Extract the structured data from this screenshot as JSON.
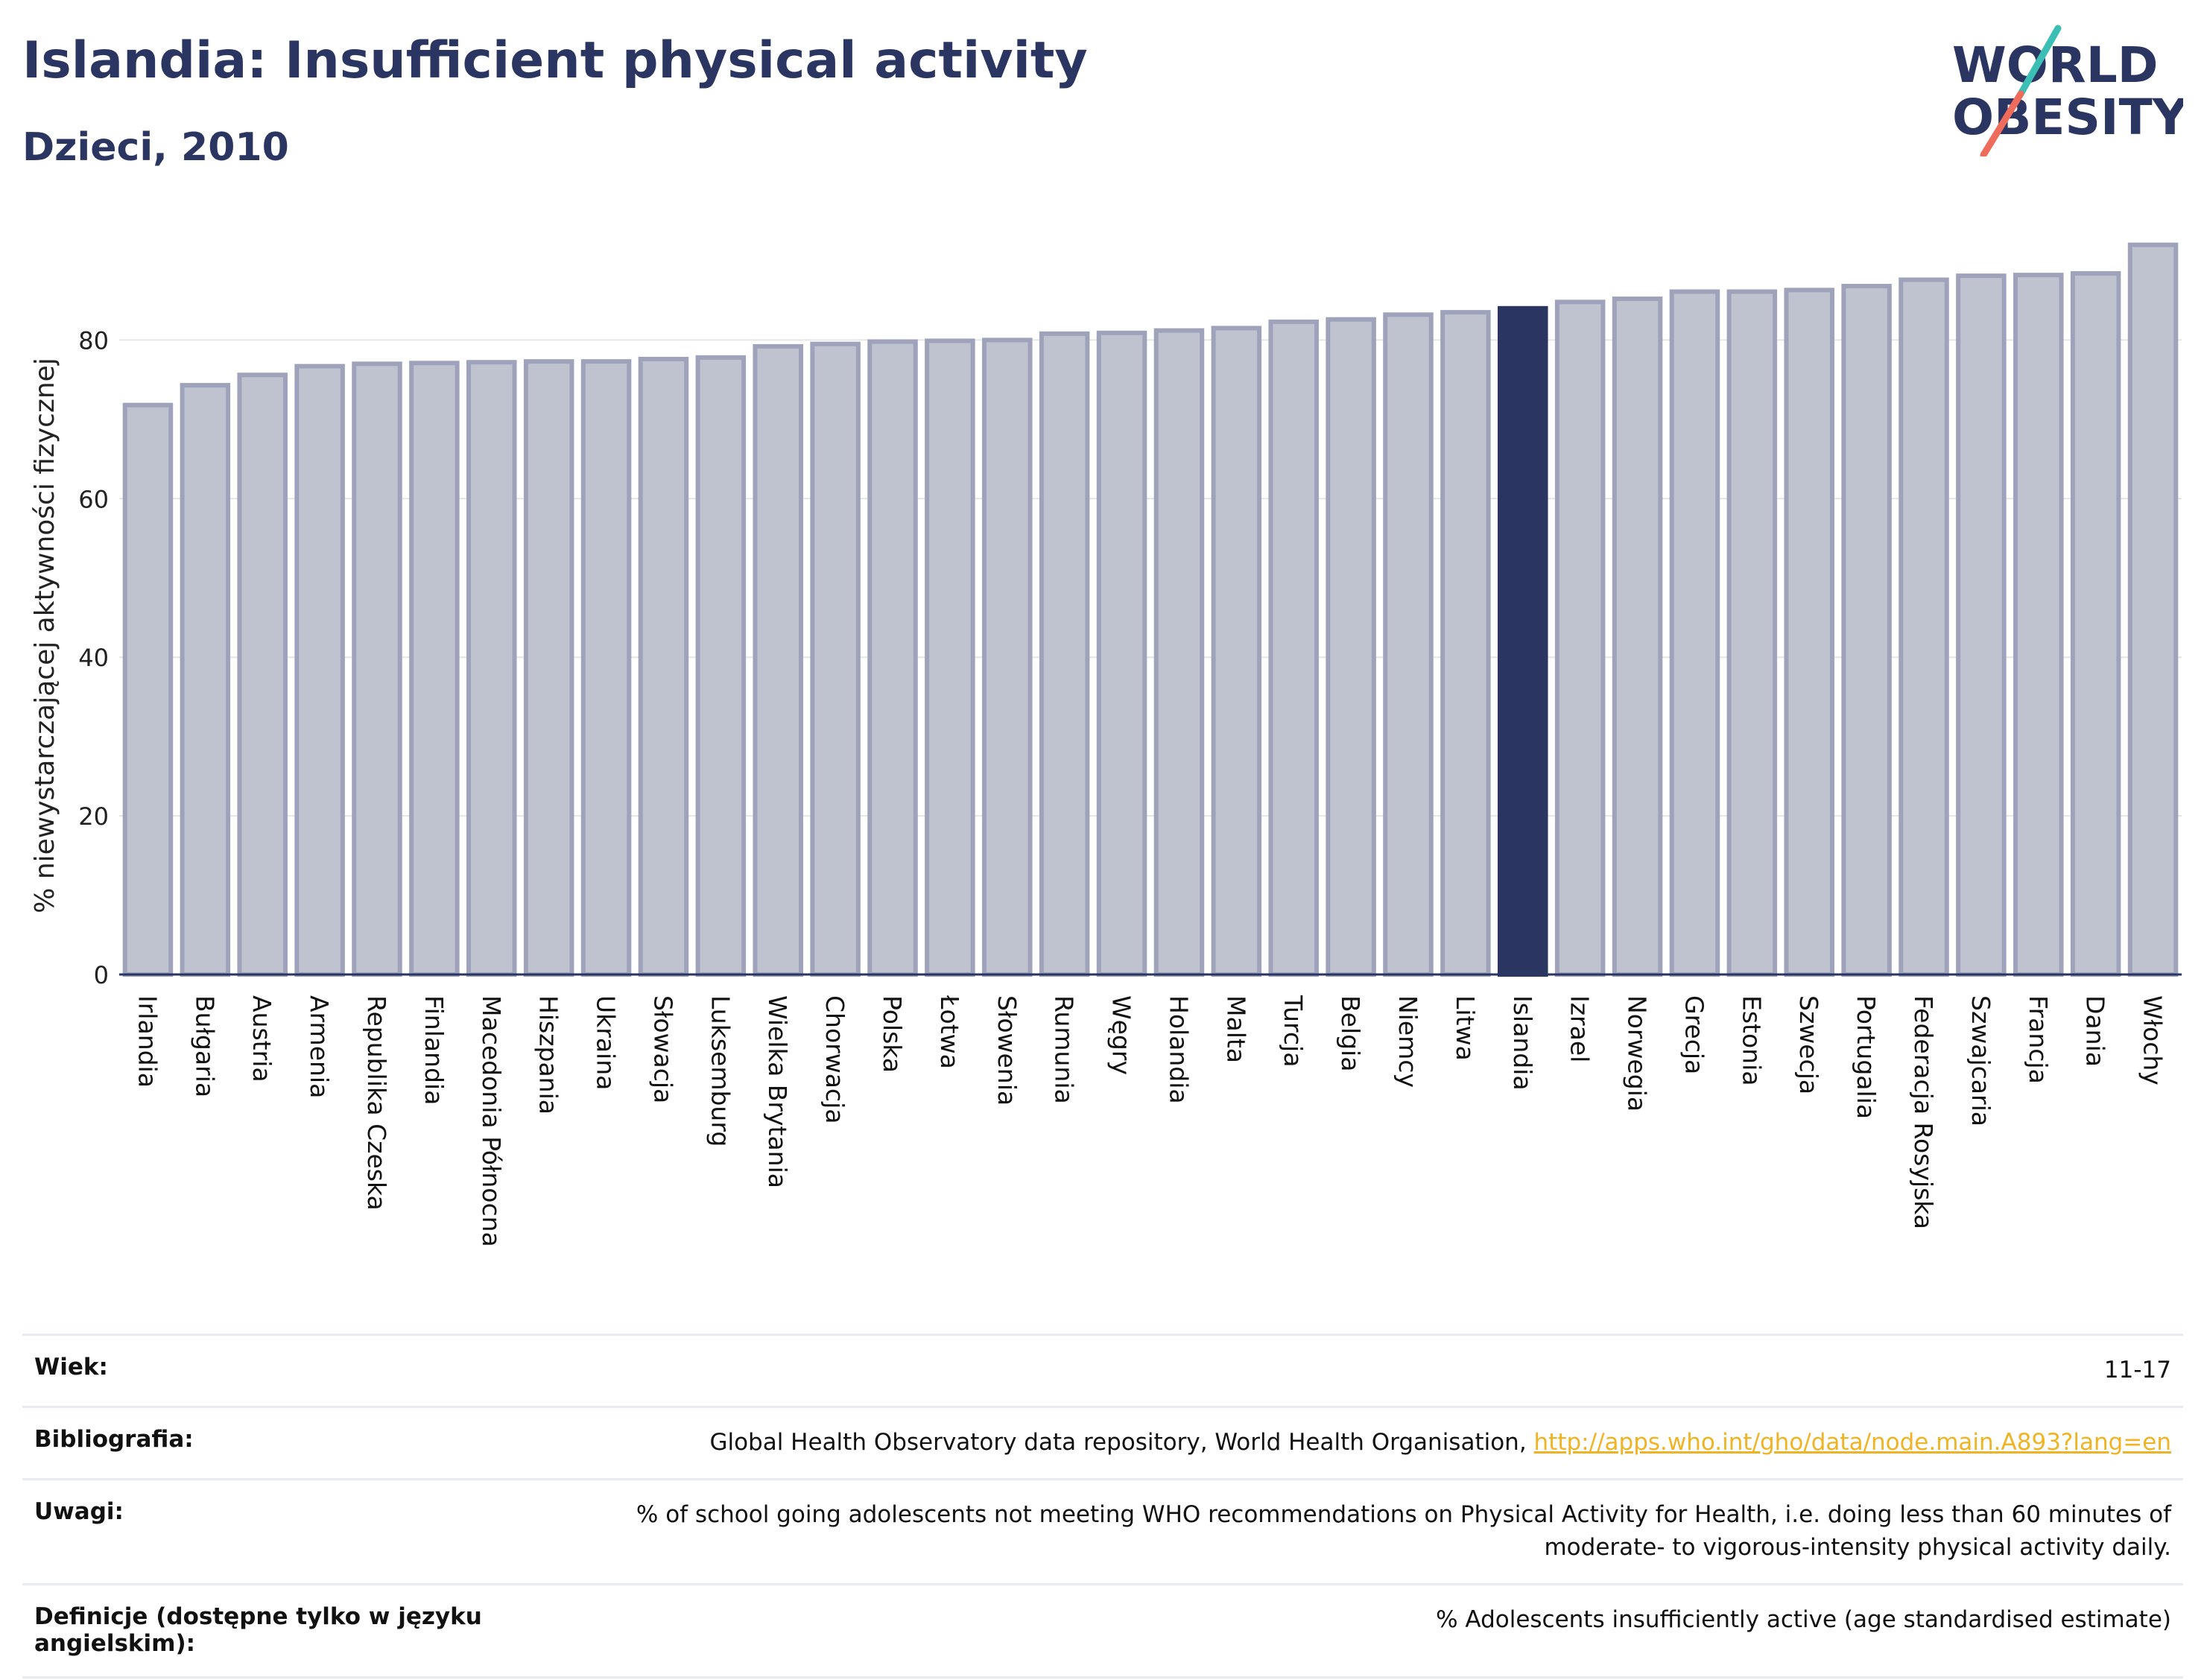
{
  "header": {
    "title": "Islandia: Insufficient physical activity",
    "subtitle": "Dzieci, 2010",
    "logo_line1": "WORLD",
    "logo_line2": "OBESITY"
  },
  "colors": {
    "bar": "#bfc2cf",
    "bar_border": "#9ea3bb",
    "highlight": "#2a3561",
    "grid": "#e6e6e6",
    "logo_text": "#2a3561",
    "logo_teal": "#3bbfb5",
    "logo_coral": "#ef6b5b"
  },
  "chart_data": {
    "type": "bar",
    "ylabel": "% niewystarczającej aktywności fizycznej",
    "ylim": [
      0,
      93
    ],
    "yticks": [
      0,
      20,
      40,
      60,
      80
    ],
    "grid": true,
    "highlight": "Islandia",
    "categories": [
      "Irlandia",
      "Bułgaria",
      "Austria",
      "Armenia",
      "Republika Czeska",
      "Finlandia",
      "Macedonia Północna",
      "Hiszpania",
      "Ukraina",
      "Słowacja",
      "Luksemburg",
      "Wielka Brytania",
      "Chorwacja",
      "Polska",
      "Łotwa",
      "Słowenia",
      "Rumunia",
      "Węgry",
      "Holandia",
      "Malta",
      "Turcja",
      "Belgia",
      "Niemcy",
      "Litwa",
      "Islandia",
      "Izrael",
      "Norwegia",
      "Grecja",
      "Estonia",
      "Szwecja",
      "Portugalia",
      "Federacja Rosyjska",
      "Szwajcaria",
      "Francja",
      "Dania",
      "Włochy"
    ],
    "values": [
      71.8,
      74.3,
      75.6,
      76.7,
      77.0,
      77.1,
      77.2,
      77.3,
      77.3,
      77.6,
      77.8,
      79.2,
      79.5,
      79.8,
      79.9,
      80.0,
      80.8,
      80.9,
      81.2,
      81.5,
      82.3,
      82.6,
      83.2,
      83.5,
      84.0,
      84.8,
      85.2,
      86.1,
      86.1,
      86.3,
      86.8,
      87.6,
      88.1,
      88.2,
      88.4,
      92.0
    ]
  },
  "meta": {
    "age_label": "Wiek:",
    "age_value": "11-17",
    "bib_label": "Bibliografia:",
    "bib_text": "Global Health Observatory data repository, World Health Organisation,",
    "bib_link": "http://apps.who.int/gho/data/node.main.A893?lang=en",
    "notes_label": "Uwagi:",
    "notes_line1": "% of school going adolescents not meeting WHO recommendations on Physical Activity for Health, i.e. doing less than 60 minutes of",
    "notes_line2": "moderate- to vigorous-intensity physical activity daily.",
    "def_label_line1": "Definicje (dostępne tylko w języku",
    "def_label_line2": "angielskim):",
    "def_value": "% Adolescents insufficiently active (age standardised estimate)"
  }
}
